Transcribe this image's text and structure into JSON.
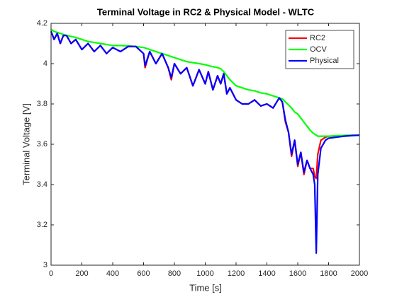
{
  "chart_data": {
    "type": "line",
    "title": "Terminal Voltage in RC2 & Physical Model - WLTC",
    "x_label": "Time [s]",
    "y_label": "Terminal Voltage [V]",
    "x": [
      0,
      20,
      40,
      60,
      80,
      100,
      130,
      160,
      200,
      240,
      280,
      320,
      360,
      400,
      450,
      500,
      550,
      600,
      610,
      640,
      680,
      720,
      760,
      780,
      800,
      840,
      880,
      920,
      960,
      1000,
      1020,
      1050,
      1080,
      1100,
      1120,
      1140,
      1160,
      1200,
      1240,
      1280,
      1320,
      1360,
      1400,
      1440,
      1480,
      1500,
      1520,
      1540,
      1560,
      1580,
      1600,
      1620,
      1640,
      1660,
      1680,
      1700,
      1710,
      1720,
      1730,
      1750,
      1780,
      1800,
      1850,
      1900,
      1950,
      2000
    ],
    "series": [
      {
        "name": "RC2",
        "color": "#ff0000",
        "values": [
          4.16,
          4.12,
          4.15,
          4.1,
          4.14,
          4.14,
          4.1,
          4.12,
          4.07,
          4.1,
          4.06,
          4.09,
          4.05,
          4.08,
          4.06,
          4.085,
          4.085,
          4.05,
          3.98,
          4.06,
          4.0,
          4.05,
          3.98,
          3.92,
          4.0,
          3.95,
          3.98,
          3.89,
          3.97,
          3.9,
          3.96,
          3.87,
          3.94,
          3.9,
          3.95,
          3.85,
          3.88,
          3.82,
          3.8,
          3.8,
          3.82,
          3.79,
          3.8,
          3.78,
          3.83,
          3.81,
          3.71,
          3.66,
          3.54,
          3.62,
          3.49,
          3.56,
          3.45,
          3.52,
          3.48,
          3.48,
          3.44,
          3.43,
          3.55,
          3.62,
          3.635,
          3.64,
          3.64,
          3.642,
          3.644,
          3.645
        ]
      },
      {
        "name": "OCV",
        "color": "#00ff00",
        "values": [
          4.17,
          4.16,
          4.155,
          4.15,
          4.145,
          4.14,
          4.135,
          4.13,
          4.12,
          4.11,
          4.105,
          4.1,
          4.095,
          4.09,
          4.09,
          4.088,
          4.085,
          4.08,
          4.078,
          4.07,
          4.06,
          4.05,
          4.04,
          4.035,
          4.03,
          4.02,
          4.01,
          4.005,
          4.0,
          3.995,
          3.99,
          3.985,
          3.98,
          3.975,
          3.96,
          3.94,
          3.92,
          3.89,
          3.88,
          3.87,
          3.865,
          3.855,
          3.85,
          3.84,
          3.83,
          3.825,
          3.81,
          3.795,
          3.78,
          3.76,
          3.75,
          3.73,
          3.71,
          3.69,
          3.67,
          3.655,
          3.65,
          3.645,
          3.64,
          3.64,
          3.64,
          3.64,
          3.642,
          3.644,
          3.645,
          3.645
        ]
      },
      {
        "name": "Physical",
        "color": "#0000ff",
        "values": [
          4.16,
          4.12,
          4.15,
          4.1,
          4.14,
          4.14,
          4.1,
          4.12,
          4.07,
          4.1,
          4.06,
          4.09,
          4.05,
          4.08,
          4.06,
          4.085,
          4.085,
          4.05,
          3.99,
          4.06,
          4.0,
          4.05,
          3.98,
          3.93,
          4.0,
          3.95,
          3.98,
          3.89,
          3.97,
          3.9,
          3.96,
          3.87,
          3.94,
          3.9,
          3.95,
          3.85,
          3.88,
          3.82,
          3.8,
          3.8,
          3.82,
          3.79,
          3.8,
          3.78,
          3.83,
          3.81,
          3.72,
          3.66,
          3.55,
          3.62,
          3.5,
          3.56,
          3.46,
          3.52,
          3.48,
          3.45,
          3.4,
          3.06,
          3.45,
          3.58,
          3.62,
          3.63,
          3.635,
          3.64,
          3.643,
          3.645
        ]
      }
    ],
    "xlim": [
      0,
      2000
    ],
    "xticks": [
      0,
      200,
      400,
      600,
      800,
      1000,
      1200,
      1400,
      1600,
      1800,
      2000
    ],
    "ylim": [
      3,
      4.2
    ],
    "yticks": [
      3,
      3.2,
      3.4,
      3.6,
      3.8,
      4,
      4.2
    ],
    "grid": false,
    "legend": "upper right"
  }
}
